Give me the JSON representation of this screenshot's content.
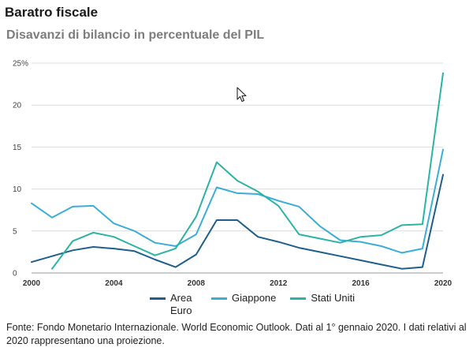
{
  "title": "Baratro fiscale",
  "subtitle": "Disavanzi di bilancio in percentuale del PIL",
  "source": "Fonte: Fondo Monetario Internazionale. World Economic Outlook. Dati al 1° gennaio 2020. I dati relativi al 2020 rappresentano una proiezione.",
  "icons": {
    "cursor": "mouse-pointer-icon"
  },
  "chart_data": {
    "type": "line",
    "x": [
      2000,
      2001,
      2002,
      2003,
      2004,
      2005,
      2006,
      2007,
      2008,
      2009,
      2010,
      2011,
      2012,
      2013,
      2014,
      2015,
      2016,
      2017,
      2018,
      2019,
      2020
    ],
    "x_ticks": [
      2000,
      2004,
      2008,
      2012,
      2016,
      2020
    ],
    "y_ticks": [
      0,
      5,
      10,
      15,
      20,
      25
    ],
    "y_tick_labels": [
      "0",
      "5",
      "10",
      "15",
      "20",
      "25%"
    ],
    "xlim": [
      2000,
      2020
    ],
    "ylim": [
      0,
      25
    ],
    "grid": "horizontal",
    "legend_position": "bottom",
    "series": [
      {
        "name": "Area Euro",
        "color": "#1f5f8b",
        "values": [
          1.3,
          2.0,
          2.7,
          3.1,
          2.9,
          2.6,
          1.6,
          0.7,
          2.2,
          6.3,
          6.3,
          4.3,
          3.7,
          3.0,
          2.5,
          2.0,
          1.5,
          1.0,
          0.5,
          0.7,
          11.7
        ]
      },
      {
        "name": "Giappone",
        "color": "#3aaed8",
        "values": [
          8.3,
          6.6,
          7.9,
          8.0,
          5.9,
          5.0,
          3.6,
          3.2,
          4.6,
          10.2,
          9.5,
          9.4,
          8.6,
          7.9,
          5.6,
          3.9,
          3.7,
          3.2,
          2.4,
          2.9,
          14.7
        ]
      },
      {
        "name": "Stati Uniti",
        "color": "#2bb3a3",
        "values": [
          null,
          0.5,
          3.8,
          4.8,
          4.3,
          3.2,
          2.1,
          2.9,
          6.7,
          13.2,
          11.0,
          9.7,
          8.0,
          4.6,
          4.1,
          3.6,
          4.3,
          4.5,
          5.7,
          5.8,
          23.8
        ]
      }
    ]
  }
}
